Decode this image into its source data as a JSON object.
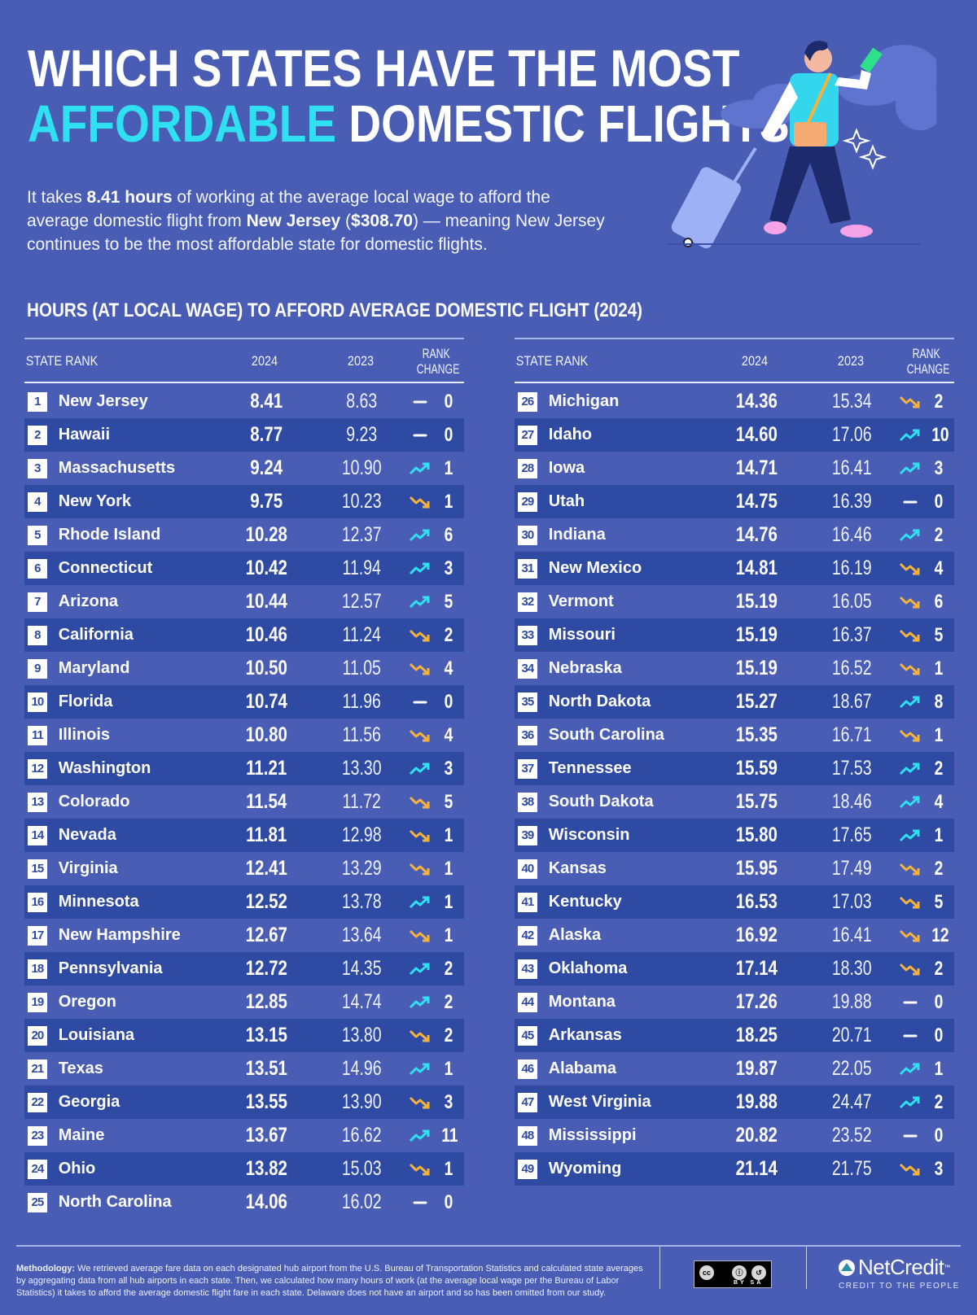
{
  "header": {
    "title_line1": "WHICH STATES HAVE THE MOST",
    "title_accent": "AFFORDABLE",
    "title_line2_rest": " DOMESTIC FLIGHTS?",
    "intro": {
      "p1": "It takes ",
      "b1": "8.41 hours",
      "p2": " of working at the average local wage to afford the average domestic flight from ",
      "b2": "New Jersey",
      "p3": " (",
      "b3": "$308.70",
      "p4": ") — meaning New Jersey continues to be the most affordable state for domestic flights."
    }
  },
  "section_title": "HOURS (AT LOCAL WAGE) TO AFFORD AVERAGE DOMESTIC FLIGHT (2024)",
  "columns": {
    "state_rank": "STATE RANK",
    "y2024": "2024",
    "y2023": "2023",
    "rank_change_1": "RANK",
    "rank_change_2": "CHANGE"
  },
  "colors": {
    "background": "#4a5db5",
    "row_alt": "#2f4aa3",
    "accent": "#2ee0f0",
    "up": "#2ee0f0",
    "down": "#f5b23c",
    "none": "#ffffff"
  },
  "rows_left": [
    {
      "rank": "1",
      "state": "New Jersey",
      "v2024": "8.41",
      "v2023": "8.63",
      "dir": "none",
      "change": "0"
    },
    {
      "rank": "2",
      "state": "Hawaii",
      "v2024": "8.77",
      "v2023": "9.23",
      "dir": "none",
      "change": "0"
    },
    {
      "rank": "3",
      "state": "Massachusetts",
      "v2024": "9.24",
      "v2023": "10.90",
      "dir": "up",
      "change": "1"
    },
    {
      "rank": "4",
      "state": "New York",
      "v2024": "9.75",
      "v2023": "10.23",
      "dir": "down",
      "change": "1"
    },
    {
      "rank": "5",
      "state": "Rhode Island",
      "v2024": "10.28",
      "v2023": "12.37",
      "dir": "up",
      "change": "6"
    },
    {
      "rank": "6",
      "state": "Connecticut",
      "v2024": "10.42",
      "v2023": "11.94",
      "dir": "up",
      "change": "3"
    },
    {
      "rank": "7",
      "state": "Arizona",
      "v2024": "10.44",
      "v2023": "12.57",
      "dir": "up",
      "change": "5"
    },
    {
      "rank": "8",
      "state": "California",
      "v2024": "10.46",
      "v2023": "11.24",
      "dir": "down",
      "change": "2"
    },
    {
      "rank": "9",
      "state": "Maryland",
      "v2024": "10.50",
      "v2023": "11.05",
      "dir": "down",
      "change": "4"
    },
    {
      "rank": "10",
      "state": "Florida",
      "v2024": "10.74",
      "v2023": "11.96",
      "dir": "none",
      "change": "0"
    },
    {
      "rank": "11",
      "state": "Illinois",
      "v2024": "10.80",
      "v2023": "11.56",
      "dir": "down",
      "change": "4"
    },
    {
      "rank": "12",
      "state": "Washington",
      "v2024": "11.21",
      "v2023": "13.30",
      "dir": "up",
      "change": "3"
    },
    {
      "rank": "13",
      "state": "Colorado",
      "v2024": "11.54",
      "v2023": "11.72",
      "dir": "down",
      "change": "5"
    },
    {
      "rank": "14",
      "state": "Nevada",
      "v2024": "11.81",
      "v2023": "12.98",
      "dir": "down",
      "change": "1"
    },
    {
      "rank": "15",
      "state": "Virginia",
      "v2024": "12.41",
      "v2023": "13.29",
      "dir": "down",
      "change": "1"
    },
    {
      "rank": "16",
      "state": "Minnesota",
      "v2024": "12.52",
      "v2023": "13.78",
      "dir": "up",
      "change": "1"
    },
    {
      "rank": "17",
      "state": "New Hampshire",
      "v2024": "12.67",
      "v2023": "13.64",
      "dir": "down",
      "change": "1"
    },
    {
      "rank": "18",
      "state": "Pennsylvania",
      "v2024": "12.72",
      "v2023": "14.35",
      "dir": "up",
      "change": "2"
    },
    {
      "rank": "19",
      "state": "Oregon",
      "v2024": "12.85",
      "v2023": "14.74",
      "dir": "up",
      "change": "2"
    },
    {
      "rank": "20",
      "state": "Louisiana",
      "v2024": "13.15",
      "v2023": "13.80",
      "dir": "down",
      "change": "2"
    },
    {
      "rank": "21",
      "state": "Texas",
      "v2024": "13.51",
      "v2023": "14.96",
      "dir": "up",
      "change": "1"
    },
    {
      "rank": "22",
      "state": "Georgia",
      "v2024": "13.55",
      "v2023": "13.90",
      "dir": "down",
      "change": "3"
    },
    {
      "rank": "23",
      "state": "Maine",
      "v2024": "13.67",
      "v2023": "16.62",
      "dir": "up",
      "change": "11"
    },
    {
      "rank": "24",
      "state": "Ohio",
      "v2024": "13.82",
      "v2023": "15.03",
      "dir": "down",
      "change": "1"
    },
    {
      "rank": "25",
      "state": "North Carolina",
      "v2024": "14.06",
      "v2023": "16.02",
      "dir": "none",
      "change": "0"
    }
  ],
  "rows_right": [
    {
      "rank": "26",
      "state": "Michigan",
      "v2024": "14.36",
      "v2023": "15.34",
      "dir": "down",
      "change": "2"
    },
    {
      "rank": "27",
      "state": "Idaho",
      "v2024": "14.60",
      "v2023": "17.06",
      "dir": "up",
      "change": "10"
    },
    {
      "rank": "28",
      "state": "Iowa",
      "v2024": "14.71",
      "v2023": "16.41",
      "dir": "up",
      "change": "3"
    },
    {
      "rank": "29",
      "state": "Utah",
      "v2024": "14.75",
      "v2023": "16.39",
      "dir": "none",
      "change": "0"
    },
    {
      "rank": "30",
      "state": "Indiana",
      "v2024": "14.76",
      "v2023": "16.46",
      "dir": "up",
      "change": "2"
    },
    {
      "rank": "31",
      "state": "New Mexico",
      "v2024": "14.81",
      "v2023": "16.19",
      "dir": "down",
      "change": "4"
    },
    {
      "rank": "32",
      "state": "Vermont",
      "v2024": "15.19",
      "v2023": "16.05",
      "dir": "down",
      "change": "6"
    },
    {
      "rank": "33",
      "state": "Missouri",
      "v2024": "15.19",
      "v2023": "16.37",
      "dir": "down",
      "change": "5"
    },
    {
      "rank": "34",
      "state": "Nebraska",
      "v2024": "15.19",
      "v2023": "16.52",
      "dir": "down",
      "change": "1"
    },
    {
      "rank": "35",
      "state": "North Dakota",
      "v2024": "15.27",
      "v2023": "18.67",
      "dir": "up",
      "change": "8"
    },
    {
      "rank": "36",
      "state": "South Carolina",
      "v2024": "15.35",
      "v2023": "16.71",
      "dir": "down",
      "change": "1"
    },
    {
      "rank": "37",
      "state": "Tennessee",
      "v2024": "15.59",
      "v2023": "17.53",
      "dir": "up",
      "change": "2"
    },
    {
      "rank": "38",
      "state": "South Dakota",
      "v2024": "15.75",
      "v2023": "18.46",
      "dir": "up",
      "change": "4"
    },
    {
      "rank": "39",
      "state": "Wisconsin",
      "v2024": "15.80",
      "v2023": "17.65",
      "dir": "up",
      "change": "1"
    },
    {
      "rank": "40",
      "state": "Kansas",
      "v2024": "15.95",
      "v2023": "17.49",
      "dir": "down",
      "change": "2"
    },
    {
      "rank": "41",
      "state": "Kentucky",
      "v2024": "16.53",
      "v2023": "17.03",
      "dir": "down",
      "change": "5"
    },
    {
      "rank": "42",
      "state": "Alaska",
      "v2024": "16.92",
      "v2023": "16.41",
      "dir": "down",
      "change": "12"
    },
    {
      "rank": "43",
      "state": "Oklahoma",
      "v2024": "17.14",
      "v2023": "18.30",
      "dir": "down",
      "change": "2"
    },
    {
      "rank": "44",
      "state": "Montana",
      "v2024": "17.26",
      "v2023": "19.88",
      "dir": "none",
      "change": "0"
    },
    {
      "rank": "45",
      "state": "Arkansas",
      "v2024": "18.25",
      "v2023": "20.71",
      "dir": "none",
      "change": "0"
    },
    {
      "rank": "46",
      "state": "Alabama",
      "v2024": "19.87",
      "v2023": "22.05",
      "dir": "up",
      "change": "1"
    },
    {
      "rank": "47",
      "state": "West Virginia",
      "v2024": "19.88",
      "v2023": "24.47",
      "dir": "up",
      "change": "2"
    },
    {
      "rank": "48",
      "state": "Mississippi",
      "v2024": "20.82",
      "v2023": "23.52",
      "dir": "none",
      "change": "0"
    },
    {
      "rank": "49",
      "state": "Wyoming",
      "v2024": "21.14",
      "v2023": "21.75",
      "dir": "down",
      "change": "3"
    }
  ],
  "footer": {
    "method_label": "Methodology:",
    "method_text": " We retrieved average fare data on each designated hub airport from the U.S. Bureau of Transportation Statistics and calculated state averages by aggregating data from all hub airports in each state. Then, we calculated how many hours of work (at the average local wage per the Bureau of Labor Statistics) it takes to afford the average domestic flight fare in each state. Delaware does not have an airport and so has been omitted from our study.",
    "license_cc": "cc",
    "license_labels": "BY SA",
    "brand_name": "NetCredit",
    "brand_tm": "™",
    "brand_tagline": "CREDIT TO THE PEOPLE"
  },
  "illustration": {
    "icon": "traveler-with-suitcase-illustration"
  }
}
